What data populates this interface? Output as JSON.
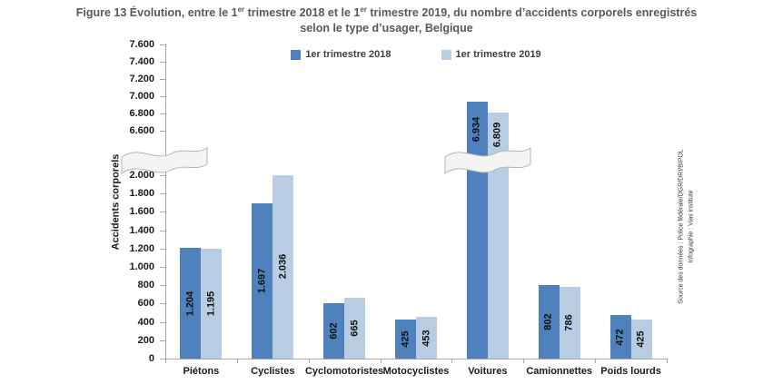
{
  "figure": {
    "title_line1_parts": [
      {
        "t": "Figure 13 Évolution, entre le 1",
        "sup": false
      },
      {
        "t": "er",
        "sup": true
      },
      {
        "t": " trimestre 2018 et le 1",
        "sup": false
      },
      {
        "t": "er",
        "sup": true
      },
      {
        "t": " trimestre 2019, du nombre d’accidents corporels enregistrés",
        "sup": false
      }
    ],
    "title_line2": "selon le type d’usager, Belgique"
  },
  "chart_data": {
    "type": "bar",
    "title": "Figure 13 Évolution, entre le 1er trimestre 2018 et le 1er trimestre 2019, du nombre d’accidents corporels enregistrés selon le type d’usager, Belgique",
    "categories": [
      "Piétons",
      "Cyclistes",
      "Cyclomotoristes",
      "Motocyclistes",
      "Voitures",
      "Camionnettes",
      "Poids lourds"
    ],
    "series": [
      {
        "name": "1er trimestre 2018",
        "color": "#4F81BD",
        "values": [
          1204,
          1697,
          602,
          425,
          6934,
          802,
          472
        ],
        "labels": [
          "1.204",
          "1.697",
          "602",
          "425",
          "6.934",
          "802",
          "472"
        ]
      },
      {
        "name": "1er trimestre 2019",
        "color": "#B8CCE4",
        "values": [
          1195,
          2036,
          665,
          453,
          6809,
          786,
          425
        ],
        "labels": [
          "1.195",
          "2.036",
          "665",
          "453",
          "6.809",
          "786",
          "425"
        ]
      }
    ],
    "xlabel": "",
    "ylabel": "Accidents corporels",
    "legend_position": "top",
    "grid": false,
    "axis_break": {
      "lower_range": [
        0,
        2000
      ],
      "upper_range": [
        6600,
        7600
      ],
      "tick_step": 200
    },
    "ytick_labels_lower": [
      "0",
      "200",
      "400",
      "600",
      "800",
      "1.000",
      "1.200",
      "1.400",
      "1.600",
      "1.800",
      "2.000"
    ],
    "ytick_labels_upper": [
      "6.600",
      "6.800",
      "7.000",
      "7.200",
      "7.400",
      "7.600"
    ]
  },
  "source": {
    "line1": "Source des données : Police fédérale/DGR/DRI/BIPOL",
    "line2": "Infographie : Vias institute"
  },
  "colors": {
    "series_2018": "#4F81BD",
    "series_2019": "#B8CCE4",
    "title_text": "#595959",
    "axis_line": "#A6A6A6",
    "label_text": "#1A1A1A",
    "break_fill": "#F4F4F4",
    "break_border": "#B5B5B5"
  }
}
